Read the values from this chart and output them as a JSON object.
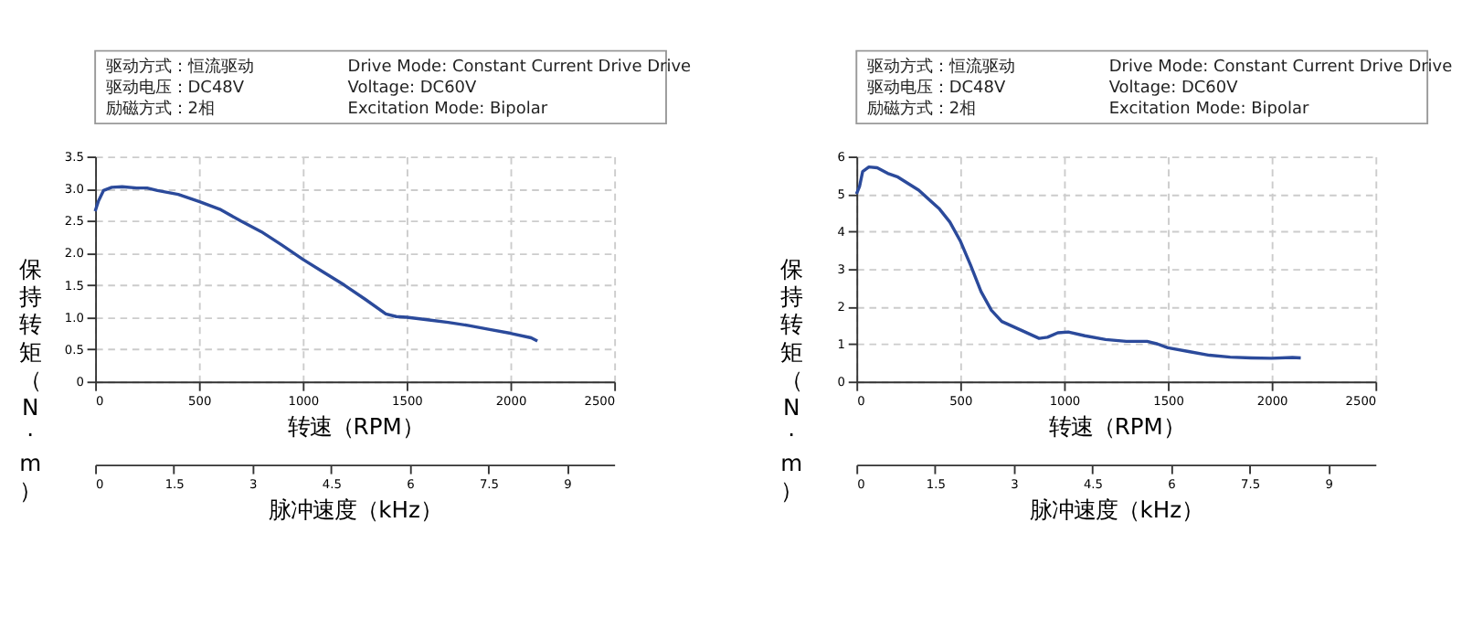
{
  "chart_data": [
    {
      "type": "line",
      "annotations": [
        "驱动方式：恒流驱动",
        "驱动电压：DC48V",
        "励磁方式：2相",
        "Drive Mode: Constant Current Drive Drive",
        "Voltage: DC60V",
        "Excitation Mode: Bipolar"
      ],
      "xlabel": "转速（RPM）",
      "ylabel": "保持转矩（N·m）",
      "x2label": "脉冲速度（kHz）",
      "xlim": [
        0,
        2500
      ],
      "xticks": [
        0,
        500,
        1000,
        1500,
        2000,
        2500
      ],
      "ylim": [
        0,
        3.5
      ],
      "yticks": [
        0,
        0.5,
        {
          "value": 1,
          "label": "1.0"
        },
        1.5,
        {
          "value": 2,
          "label": "2.0"
        },
        2.5,
        {
          "value": 3,
          "label": "3.0"
        },
        3.5
      ],
      "x2lim": [
        0,
        9.9
      ],
      "x2ticks": [
        0,
        1.5,
        3,
        4.5,
        6,
        7.5,
        9
      ],
      "grid": true,
      "line_style": "solid",
      "series": [
        {
          "color": "#2b4a9b",
          "x": [
            0,
            15,
            40,
            80,
            130,
            200,
            250,
            300,
            400,
            500,
            600,
            700,
            800,
            900,
            1000,
            1100,
            1200,
            1300,
            1400,
            1450,
            1500,
            1600,
            1700,
            1800,
            1900,
            2000,
            2100,
            2130
          ],
          "values": [
            2.65,
            2.8,
            2.97,
            3.02,
            3.03,
            3.01,
            3.01,
            2.97,
            2.91,
            2.8,
            2.68,
            2.5,
            2.33,
            2.12,
            1.9,
            1.7,
            1.5,
            1.28,
            1.05,
            1.01,
            1.0,
            0.96,
            0.92,
            0.87,
            0.81,
            0.75,
            0.68,
            0.63
          ]
        }
      ]
    },
    {
      "type": "line",
      "annotations": [
        "驱动方式：恒流驱动",
        "驱动电压：DC48V",
        "励磁方式：2相",
        "Drive Mode: Constant Current Drive Drive",
        "Voltage: DC60V",
        "Excitation Mode: Bipolar"
      ],
      "xlabel": "转速（RPM）",
      "ylabel": "保持转矩（N·m）",
      "x2label": "脉冲速度（kHz）",
      "xlim": [
        0,
        2500
      ],
      "xticks": [
        0,
        500,
        1000,
        1500,
        2000,
        2500
      ],
      "ylim": [
        0,
        6
      ],
      "yticks": [
        0,
        1,
        2,
        3,
        4,
        5,
        6
      ],
      "x2lim": [
        0,
        9.9
      ],
      "x2ticks": [
        0,
        1.5,
        3,
        4.5,
        6,
        7.5,
        9
      ],
      "grid": true,
      "line_style": "solid",
      "series": [
        {
          "color": "#2b4a9b",
          "x": [
            0,
            15,
            30,
            60,
            100,
            150,
            200,
            300,
            400,
            450,
            500,
            550,
            600,
            650,
            700,
            800,
            880,
            920,
            970,
            1020,
            1100,
            1200,
            1300,
            1400,
            1450,
            1500,
            1600,
            1700,
            1800,
            1900,
            2000,
            2100,
            2140
          ],
          "values": [
            5.0,
            5.2,
            5.6,
            5.72,
            5.7,
            5.55,
            5.45,
            5.1,
            4.6,
            4.25,
            3.75,
            3.1,
            2.4,
            1.9,
            1.6,
            1.35,
            1.15,
            1.18,
            1.3,
            1.32,
            1.22,
            1.12,
            1.07,
            1.07,
            1.0,
            0.9,
            0.8,
            0.7,
            0.65,
            0.63,
            0.62,
            0.64,
            0.63
          ]
        }
      ]
    }
  ]
}
